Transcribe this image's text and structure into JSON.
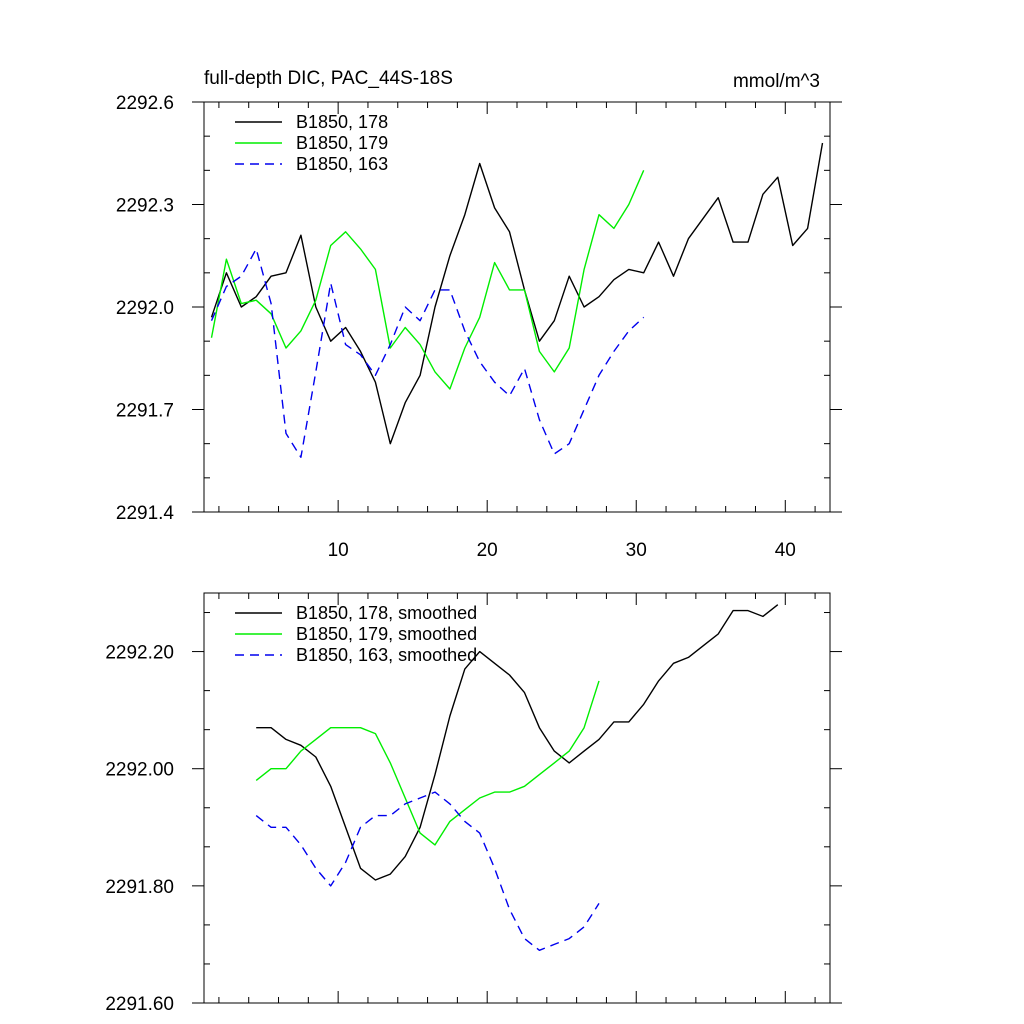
{
  "chart_data": [
    {
      "type": "line",
      "title": "full-depth DIC, PAC_44S-18S",
      "units": "mmol/m^3",
      "xlim": [
        1,
        43
      ],
      "ylim": [
        2291.4,
        2292.6
      ],
      "xticks": [
        10,
        20,
        30,
        40
      ],
      "xtick_labels": [
        "10",
        "20",
        "30",
        "40"
      ],
      "yticks": [
        2291.4,
        2291.7,
        2292.0,
        2292.3,
        2292.6
      ],
      "ytick_labels": [
        "2291.4",
        "2291.7",
        "2292.0",
        "2292.3",
        "2292.6"
      ],
      "legend": "top-left",
      "series": [
        {
          "name": "B1850, 178",
          "color": "#000000",
          "dash": "solid",
          "x": [
            1.5,
            2.5,
            3.5,
            4.5,
            5.5,
            6.5,
            7.5,
            8.5,
            9.5,
            10.5,
            11.5,
            12.5,
            13.5,
            14.5,
            15.5,
            16.5,
            17.5,
            18.5,
            19.5,
            20.5,
            21.5,
            22.5,
            23.5,
            24.5,
            25.5,
            26.5,
            27.5,
            28.5,
            29.5,
            30.5,
            31.5,
            32.5,
            33.5,
            34.5,
            35.5,
            36.5,
            37.5,
            38.5,
            39.5,
            40.5,
            41.5,
            42.5
          ],
          "values": [
            2291.97,
            2292.1,
            2292.0,
            2292.03,
            2292.09,
            2292.1,
            2292.21,
            2292.0,
            2291.9,
            2291.94,
            2291.87,
            2291.78,
            2291.6,
            2291.72,
            2291.8,
            2292.0,
            2292.15,
            2292.27,
            2292.42,
            2292.29,
            2292.22,
            2292.05,
            2291.9,
            2291.96,
            2292.09,
            2292.0,
            2292.03,
            2292.08,
            2292.11,
            2292.1,
            2292.19,
            2292.09,
            2292.2,
            2292.26,
            2292.32,
            2292.19,
            2292.19,
            2292.33,
            2292.38,
            2292.18,
            2292.23,
            2292.48
          ]
        },
        {
          "name": "B1850, 179",
          "color": "#00ee00",
          "dash": "solid",
          "x": [
            1.5,
            2.5,
            3.5,
            4.5,
            5.5,
            6.5,
            7.5,
            8.5,
            9.5,
            10.5,
            11.5,
            12.5,
            13.5,
            14.5,
            15.5,
            16.5,
            17.5,
            18.5,
            19.5,
            20.5,
            21.5,
            22.5,
            23.5,
            24.5,
            25.5,
            26.5,
            27.5,
            28.5,
            29.5,
            30.5
          ],
          "values": [
            2291.91,
            2292.14,
            2292.01,
            2292.02,
            2291.98,
            2291.88,
            2291.93,
            2292.02,
            2292.18,
            2292.22,
            2292.17,
            2292.11,
            2291.88,
            2291.94,
            2291.89,
            2291.81,
            2291.76,
            2291.88,
            2291.97,
            2292.13,
            2292.05,
            2292.05,
            2291.87,
            2291.81,
            2291.88,
            2292.11,
            2292.27,
            2292.23,
            2292.3,
            2292.4
          ]
        },
        {
          "name": "B1850, 163",
          "color": "#0000ee",
          "dash": "dashed",
          "x": [
            1.5,
            2.5,
            3.5,
            4.5,
            5.5,
            6.5,
            7.5,
            8.5,
            9.5,
            10.5,
            11.5,
            12.5,
            13.5,
            14.5,
            15.5,
            16.5,
            17.5,
            18.5,
            19.5,
            20.5,
            21.5,
            22.5,
            23.5,
            24.5,
            25.5,
            26.5,
            27.5,
            28.5,
            29.5,
            30.5
          ],
          "values": [
            2291.96,
            2292.06,
            2292.09,
            2292.17,
            2292.01,
            2291.63,
            2291.56,
            2291.81,
            2292.07,
            2291.89,
            2291.86,
            2291.8,
            2291.89,
            2292.0,
            2291.96,
            2292.05,
            2292.05,
            2291.93,
            2291.84,
            2291.78,
            2291.74,
            2291.82,
            2291.67,
            2291.57,
            2291.6,
            2291.7,
            2291.8,
            2291.87,
            2291.93,
            2291.97
          ]
        }
      ]
    },
    {
      "type": "line",
      "title": "",
      "units": "",
      "xlim": [
        1,
        43
      ],
      "ylim": [
        2291.6,
        2292.3
      ],
      "xticks": [
        10,
        20,
        30,
        40
      ],
      "xtick_labels": [],
      "yticks": [
        2291.6,
        2291.8,
        2292.0,
        2292.2
      ],
      "ytick_labels": [
        "2291.60",
        "2291.80",
        "2292.00",
        "2292.20"
      ],
      "legend": "top-left",
      "series": [
        {
          "name": "B1850, 178, smoothed",
          "color": "#000000",
          "dash": "solid",
          "x": [
            4.5,
            5.5,
            6.5,
            7.5,
            8.5,
            9.5,
            10.5,
            11.5,
            12.5,
            13.5,
            14.5,
            15.5,
            16.5,
            17.5,
            18.5,
            19.5,
            20.5,
            21.5,
            22.5,
            23.5,
            24.5,
            25.5,
            26.5,
            27.5,
            28.5,
            29.5,
            30.5,
            31.5,
            32.5,
            33.5,
            34.5,
            35.5,
            36.5,
            37.5,
            38.5,
            39.5
          ],
          "values": [
            2292.07,
            2292.07,
            2292.05,
            2292.04,
            2292.02,
            2291.97,
            2291.9,
            2291.83,
            2291.81,
            2291.82,
            2291.85,
            2291.9,
            2291.99,
            2292.09,
            2292.17,
            2292.2,
            2292.18,
            2292.16,
            2292.13,
            2292.07,
            2292.03,
            2292.01,
            2292.03,
            2292.05,
            2292.08,
            2292.08,
            2292.11,
            2292.15,
            2292.18,
            2292.19,
            2292.21,
            2292.23,
            2292.27,
            2292.27,
            2292.26,
            2292.28
          ]
        },
        {
          "name": "B1850, 179, smoothed",
          "color": "#00ee00",
          "dash": "solid",
          "x": [
            4.5,
            5.5,
            6.5,
            7.5,
            8.5,
            9.5,
            10.5,
            11.5,
            12.5,
            13.5,
            14.5,
            15.5,
            16.5,
            17.5,
            18.5,
            19.5,
            20.5,
            21.5,
            22.5,
            23.5,
            24.5,
            25.5,
            26.5,
            27.5
          ],
          "values": [
            2291.98,
            2292.0,
            2292.0,
            2292.03,
            2292.05,
            2292.07,
            2292.07,
            2292.07,
            2292.06,
            2292.01,
            2291.95,
            2291.89,
            2291.87,
            2291.91,
            2291.93,
            2291.95,
            2291.96,
            2291.96,
            2291.97,
            2291.99,
            2292.01,
            2292.03,
            2292.07,
            2292.15
          ]
        },
        {
          "name": "B1850, 163, smoothed",
          "color": "#0000ee",
          "dash": "dashed",
          "x": [
            4.5,
            5.5,
            6.5,
            7.5,
            8.5,
            9.5,
            10.5,
            11.5,
            12.5,
            13.5,
            14.5,
            15.5,
            16.5,
            17.5,
            18.5,
            19.5,
            20.5,
            21.5,
            22.5,
            23.5,
            24.5,
            25.5,
            26.5,
            27.5
          ],
          "values": [
            2291.92,
            2291.9,
            2291.9,
            2291.87,
            2291.83,
            2291.8,
            2291.84,
            2291.9,
            2291.92,
            2291.92,
            2291.94,
            2291.95,
            2291.96,
            2291.94,
            2291.91,
            2291.89,
            2291.83,
            2291.76,
            2291.71,
            2291.69,
            2291.7,
            2291.71,
            2291.73,
            2291.77
          ]
        }
      ]
    }
  ]
}
